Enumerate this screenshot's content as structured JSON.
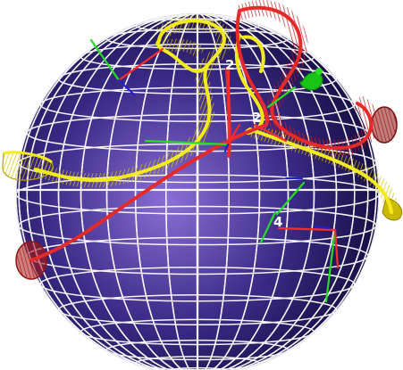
{
  "scene": {
    "description_free": true,
    "background_color": "#ffffff",
    "sphere": {
      "center_color": "#8a6fd6",
      "mid_color": "#3b2a86",
      "edge_color": "#120a3a",
      "grid_color": "#ffffff"
    },
    "ribbons": [
      {
        "name": "yellow",
        "color": "#f2ea1c",
        "hatch_color": "#d8c400"
      },
      {
        "name": "red",
        "color": "#e62a2a",
        "hatch_color": "#b31616"
      }
    ],
    "markers": [
      {
        "label": "2",
        "kind": "frame-label"
      },
      {
        "label": "2",
        "kind": "frame-label"
      },
      {
        "label": "4",
        "kind": "frame-label"
      }
    ],
    "axes_colors": {
      "x": "#ff2a2a",
      "y": "#22dd22",
      "z": "#2222cc"
    },
    "end_caps": {
      "yellow_left": "#e0d400",
      "yellow_right": "#c9b800",
      "red_left": "#a41a1a",
      "red_right": "#8b1414",
      "green_knot": "#19c419"
    }
  }
}
